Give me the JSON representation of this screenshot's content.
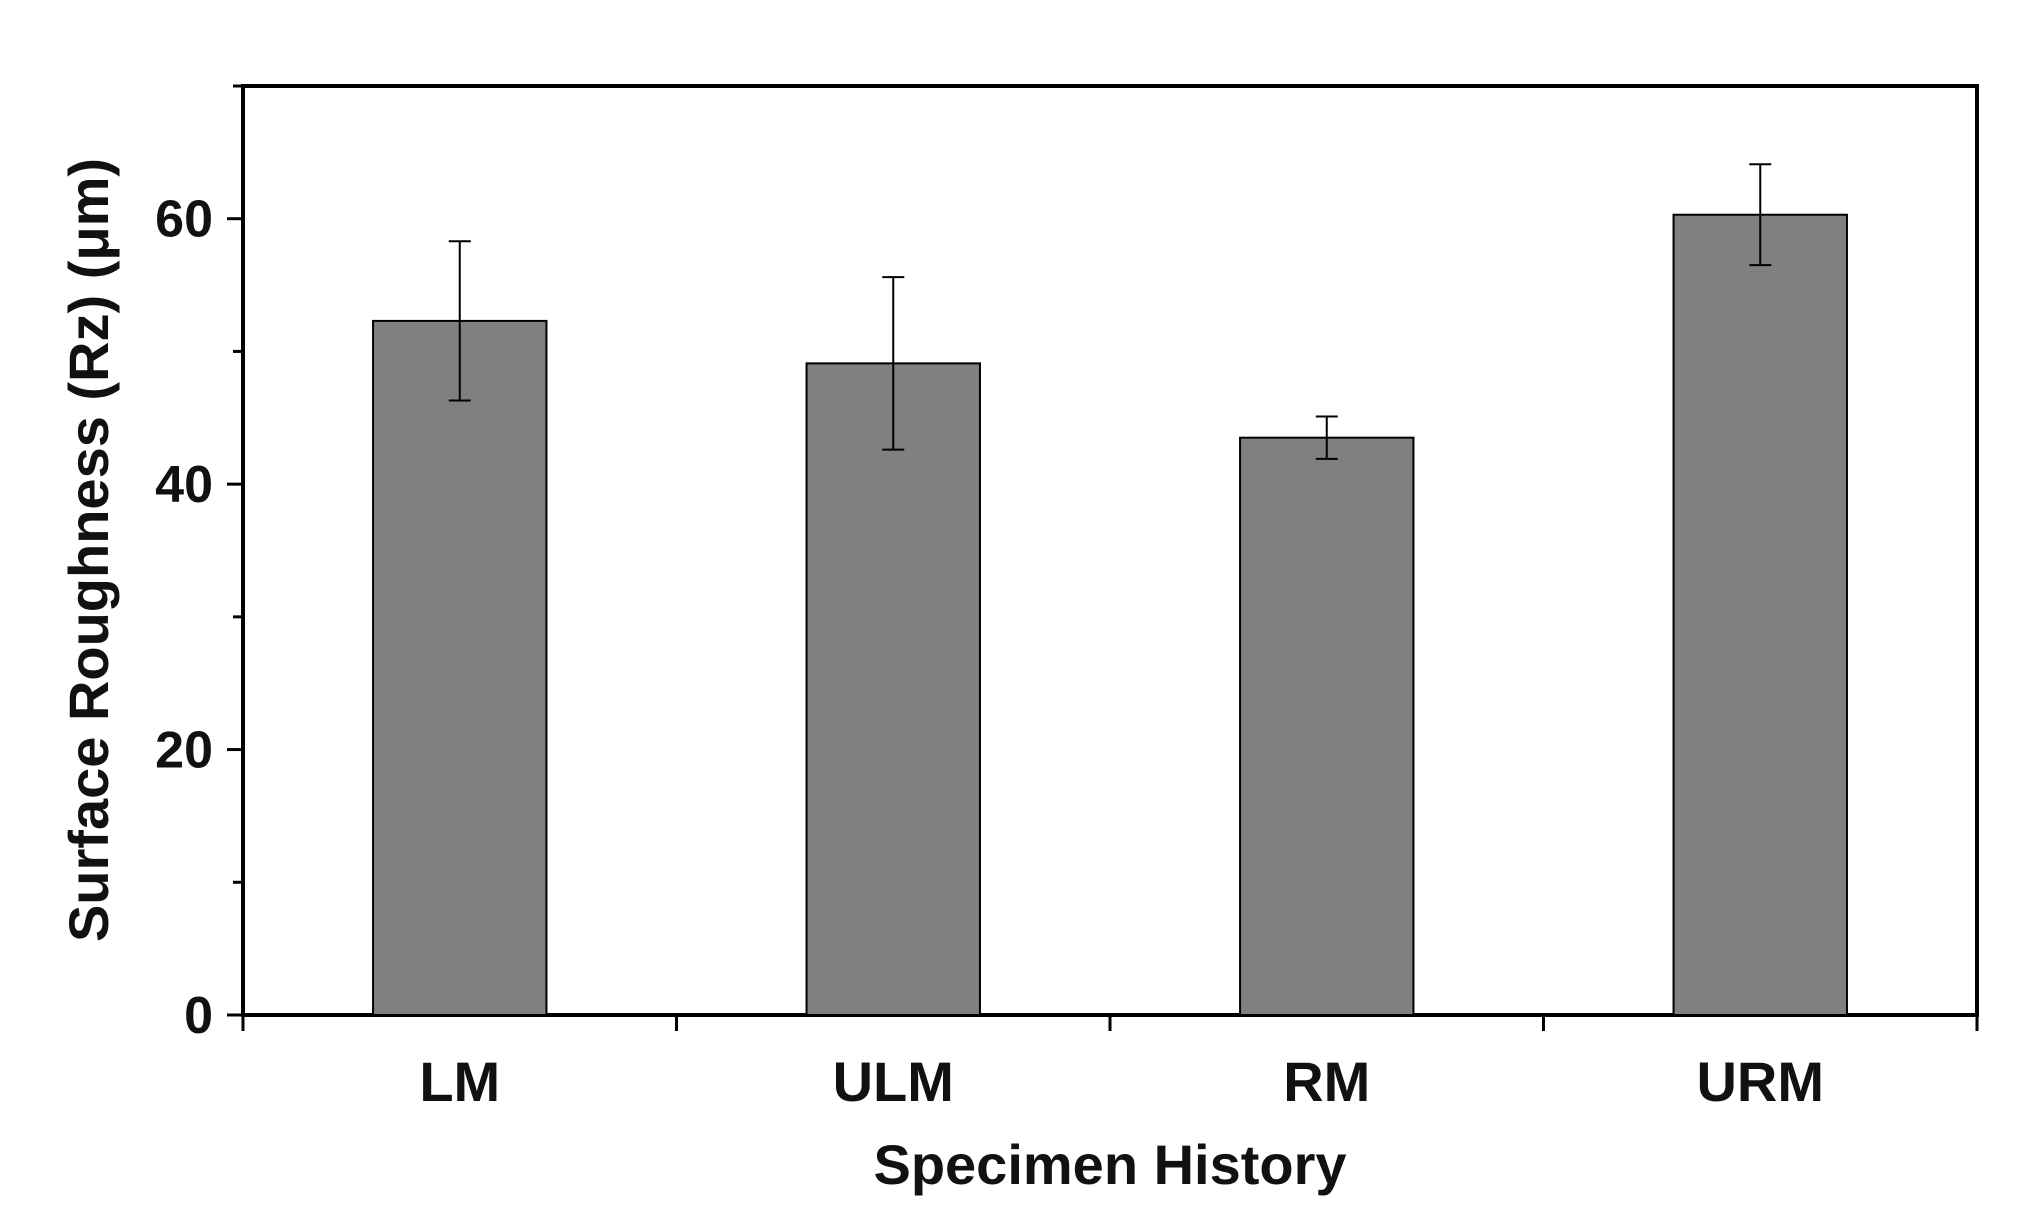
{
  "chart_data": {
    "type": "bar",
    "categories": [
      "LM",
      "ULM",
      "RM",
      "URM"
    ],
    "series": [
      {
        "values": [
          52.3,
          49.1,
          43.5,
          60.3
        ],
        "error": [
          6.0,
          6.5,
          1.6,
          3.8
        ]
      }
    ],
    "xlabel": "Specimen History",
    "ylabel": "Surface Roughness (Rz) (μm)",
    "ylim": [
      0,
      70
    ],
    "yticks": [
      0,
      20,
      40,
      60
    ],
    "yticks_minor": [
      10,
      30,
      50,
      70
    ],
    "tick_labels": [
      "0",
      "20",
      "40",
      "60"
    ],
    "grid": false,
    "legend": "none",
    "colors": {
      "bar_fill": "#808080",
      "bar_stroke": "#000000",
      "axis": "#000000",
      "background": "#ffffff"
    }
  }
}
